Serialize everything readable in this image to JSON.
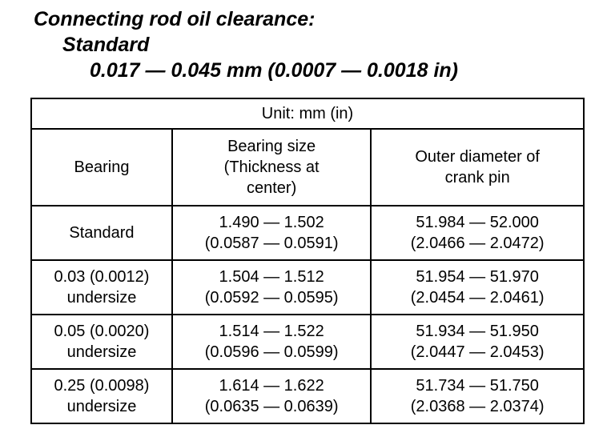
{
  "heading": {
    "line1": "Connecting rod oil clearance:",
    "line2": "Standard",
    "line3": "0.017 — 0.045 mm (0.0007 — 0.0018 in)"
  },
  "table": {
    "unit_label": "Unit: mm (in)",
    "header": {
      "bearing": [
        "Bearing"
      ],
      "size": [
        "Bearing size",
        "(Thickness at",
        "center)"
      ],
      "diameter": [
        "Outer diameter of",
        "crank pin"
      ]
    },
    "rows": [
      {
        "bearing": [
          "Standard",
          ""
        ],
        "size": [
          "1.490 — 1.502",
          "(0.0587 — 0.0591)"
        ],
        "diameter": [
          "51.984 — 52.000",
          "(2.0466 — 2.0472)"
        ]
      },
      {
        "bearing": [
          "0.03 (0.0012)",
          "undersize"
        ],
        "size": [
          "1.504 — 1.512",
          "(0.0592 — 0.0595)"
        ],
        "diameter": [
          "51.954 — 51.970",
          "(2.0454 — 2.0461)"
        ]
      },
      {
        "bearing": [
          "0.05 (0.0020)",
          "undersize"
        ],
        "size": [
          "1.514 — 1.522",
          "(0.0596 — 0.0599)"
        ],
        "diameter": [
          "51.934 — 51.950",
          "(2.0447 — 2.0453)"
        ]
      },
      {
        "bearing": [
          "0.25 (0.0098)",
          "undersize"
        ],
        "size": [
          "1.614 — 1.622",
          "(0.0635 — 0.0639)"
        ],
        "diameter": [
          "51.734 — 51.750",
          "(2.0368 — 2.0374)"
        ]
      }
    ]
  }
}
